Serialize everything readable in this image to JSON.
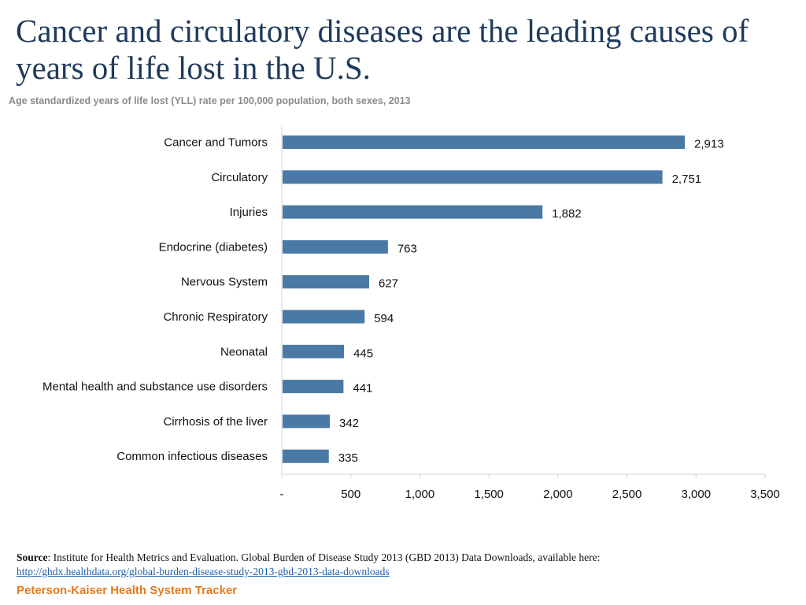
{
  "header": {
    "title": "Cancer and circulatory diseases are the leading causes of years of life lost in the U.S.",
    "subtitle": "Age standardized years of life lost (YLL) rate per 100,000 population, both sexes, 2013"
  },
  "chart_data": {
    "type": "bar",
    "orientation": "horizontal",
    "categories": [
      "Cancer and Tumors",
      "Circulatory",
      "Injuries",
      "Endocrine (diabetes)",
      "Nervous System",
      "Chronic Respiratory",
      "Neonatal",
      "Mental health and substance use disorders",
      "Cirrhosis of the liver",
      "Common infectious diseases"
    ],
    "values": [
      2913,
      2751,
      1882,
      763,
      627,
      594,
      445,
      441,
      342,
      335
    ],
    "value_labels": [
      "2,913",
      "2,751",
      "1,882",
      "763",
      "627",
      "594",
      "445",
      "441",
      "342",
      "335"
    ],
    "xlim": [
      0,
      3500
    ],
    "xticks": [
      0,
      500,
      1000,
      1500,
      2000,
      2500,
      3000,
      3500
    ],
    "xtick_labels": [
      "-",
      "500",
      "1,000",
      "1,500",
      "2,000",
      "2,500",
      "3,000",
      "3,500"
    ],
    "bar_color": "#4a79a5",
    "grid": false,
    "legend": "none"
  },
  "source": {
    "label": "Source",
    "text": ": Institute for Health Metrics and Evaluation. Global Burden of Disease Study 2013 (GBD 2013) Data Downloads, available here:",
    "link": "http://ghdx.healthdata.org/global-burden-disease-study-2013-gbd-2013-data-downloads"
  },
  "footer": {
    "brand": "Peterson-Kaiser Health System Tracker",
    "brand_color": "#e07b1f"
  }
}
